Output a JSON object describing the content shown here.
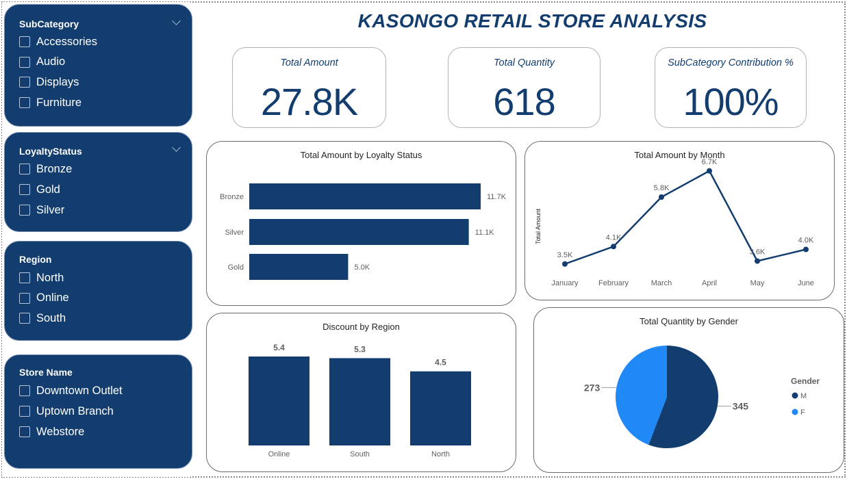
{
  "title": "KASONGO RETAIL STORE ANALYSIS",
  "slicers": [
    {
      "title": "SubCategory",
      "has_chevron": true,
      "options": [
        "Accessories",
        "Audio",
        "Displays",
        "Furniture"
      ]
    },
    {
      "title": "LoyaltyStatus",
      "has_chevron": true,
      "options": [
        "Bronze",
        "Gold",
        "Silver"
      ]
    },
    {
      "title": "Region",
      "has_chevron": false,
      "options": [
        "North",
        "Online",
        "South"
      ]
    },
    {
      "title": "Store Name",
      "has_chevron": false,
      "options": [
        "Downtown Outlet",
        "Uptown Branch",
        "Webstore"
      ]
    }
  ],
  "kpis": [
    {
      "label": "Total Amount",
      "value": "27.8K"
    },
    {
      "label": "Total Quantity",
      "value": "618"
    },
    {
      "label": "SubCategory Contribution %",
      "value": "100%"
    }
  ],
  "colors": {
    "primary": "#123d6e",
    "secondary": "#2189f5",
    "sidebar": "#123d6e",
    "label": "#605e5c"
  },
  "chart_data": [
    {
      "type": "bar",
      "orientation": "horizontal",
      "title": "Total Amount by Loyalty Status",
      "categories": [
        "Bronze",
        "Silver",
        "Gold"
      ],
      "values": [
        11.7,
        11.1,
        5.0
      ],
      "data_labels": [
        "11.7K",
        "11.1K",
        "5.0K"
      ],
      "unit": "K"
    },
    {
      "type": "line",
      "title": "Total Amount by Month",
      "ylabel": "Total Amount",
      "x": [
        "January",
        "February",
        "March",
        "April",
        "May",
        "June"
      ],
      "values": [
        3.5,
        4.1,
        5.8,
        6.7,
        3.6,
        4.0
      ],
      "data_labels": [
        "3.5K",
        "4.1K",
        "5.8K",
        "6.7K",
        "3.6K",
        "4.0K"
      ]
    },
    {
      "type": "bar",
      "orientation": "vertical",
      "title": "Discount by Region",
      "categories": [
        "Online",
        "South",
        "North"
      ],
      "values": [
        5.4,
        5.3,
        4.5
      ],
      "data_labels": [
        "5.4",
        "5.3",
        "4.5"
      ]
    },
    {
      "type": "pie",
      "title": "Total Quantity by Gender",
      "legend_title": "Gender",
      "legend_position": "right",
      "slices": [
        {
          "name": "M",
          "value": 345,
          "color": "#123d6e"
        },
        {
          "name": "F",
          "value": 273,
          "color": "#2189f5"
        }
      ]
    }
  ]
}
